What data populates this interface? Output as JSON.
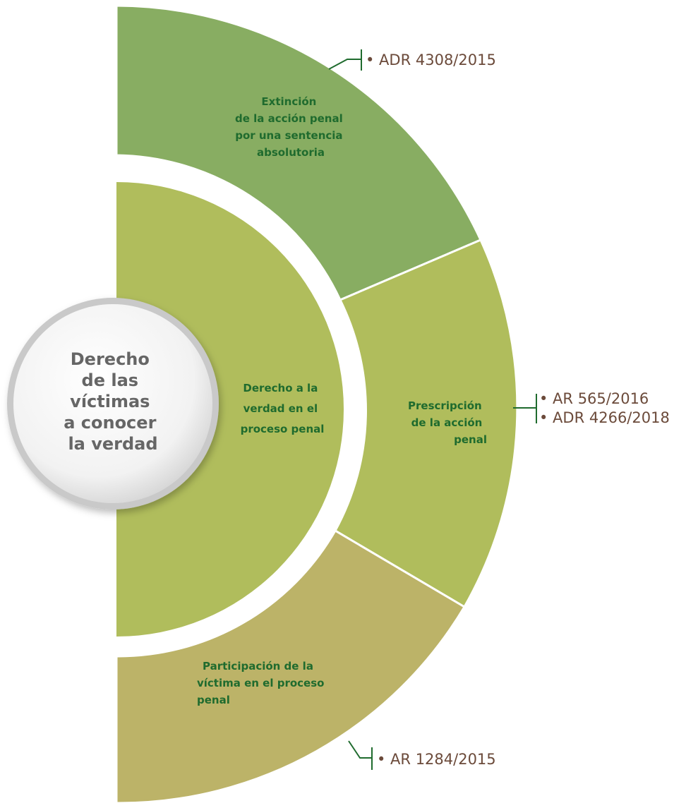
{
  "center": {
    "lines": [
      "Derecho",
      "de las",
      "víctimas",
      "a conocer",
      "la verdad"
    ]
  },
  "inner": {
    "lines": [
      "Derecho a la",
      "verdad en el",
      "proceso penal"
    ],
    "color": "#b0bd5c"
  },
  "segments": [
    {
      "lines": [
        "Extinción",
        "de la acción penal",
        "por una sentencia",
        "absolutoria"
      ],
      "refs": [
        "• ADR 4308/2015"
      ],
      "color": "#88ad62"
    },
    {
      "lines": [
        "Prescripción",
        "de la acción",
        "penal"
      ],
      "refs": [
        "• AR 565/2016",
        "• ADR 4266/2018"
      ],
      "color": "#b0bd5c"
    },
    {
      "lines": [
        "Participación de la",
        "víctima en el proceso",
        "penal"
      ],
      "refs": [
        "• AR 1284/2015"
      ],
      "color": "#bcb368"
    }
  ],
  "colors": {
    "label_text": "#1f6b2e",
    "ref_text": "#6b4a3a",
    "center_text": "#666666"
  }
}
